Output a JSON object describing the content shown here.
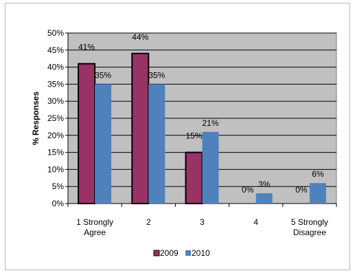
{
  "chart_data": {
    "type": "bar",
    "title": "",
    "xlabel": "",
    "ylabel": "% Responses",
    "ylim": [
      0,
      50
    ],
    "yticks": [
      0,
      5,
      10,
      15,
      20,
      25,
      30,
      35,
      40,
      45,
      50
    ],
    "ytick_labels": [
      "0%",
      "5%",
      "10%",
      "15%",
      "20%",
      "25%",
      "30%",
      "35%",
      "40%",
      "45%",
      "50%"
    ],
    "categories": [
      "1    Strongly Agree",
      "2",
      "3",
      "4",
      "5    Strongly Disagree"
    ],
    "category_lines": [
      [
        "1    Strongly",
        "Agree"
      ],
      [
        "2"
      ],
      [
        "3"
      ],
      [
        "4"
      ],
      [
        "5    Strongly",
        "Disagree"
      ]
    ],
    "series": [
      {
        "name": "2009",
        "color": "#993366",
        "values": [
          41,
          44,
          15,
          0,
          0
        ],
        "labels": [
          "41%",
          "44%",
          "15%",
          "0%",
          "0%"
        ]
      },
      {
        "name": "2010",
        "color": "#4f81bd",
        "values": [
          35,
          35,
          21,
          3,
          6
        ],
        "labels": [
          "35%",
          "35%",
          "21%",
          "3%",
          "6%"
        ]
      }
    ],
    "grid": true,
    "plot_background": "#c0c0c0",
    "legend_position": "bottom"
  }
}
